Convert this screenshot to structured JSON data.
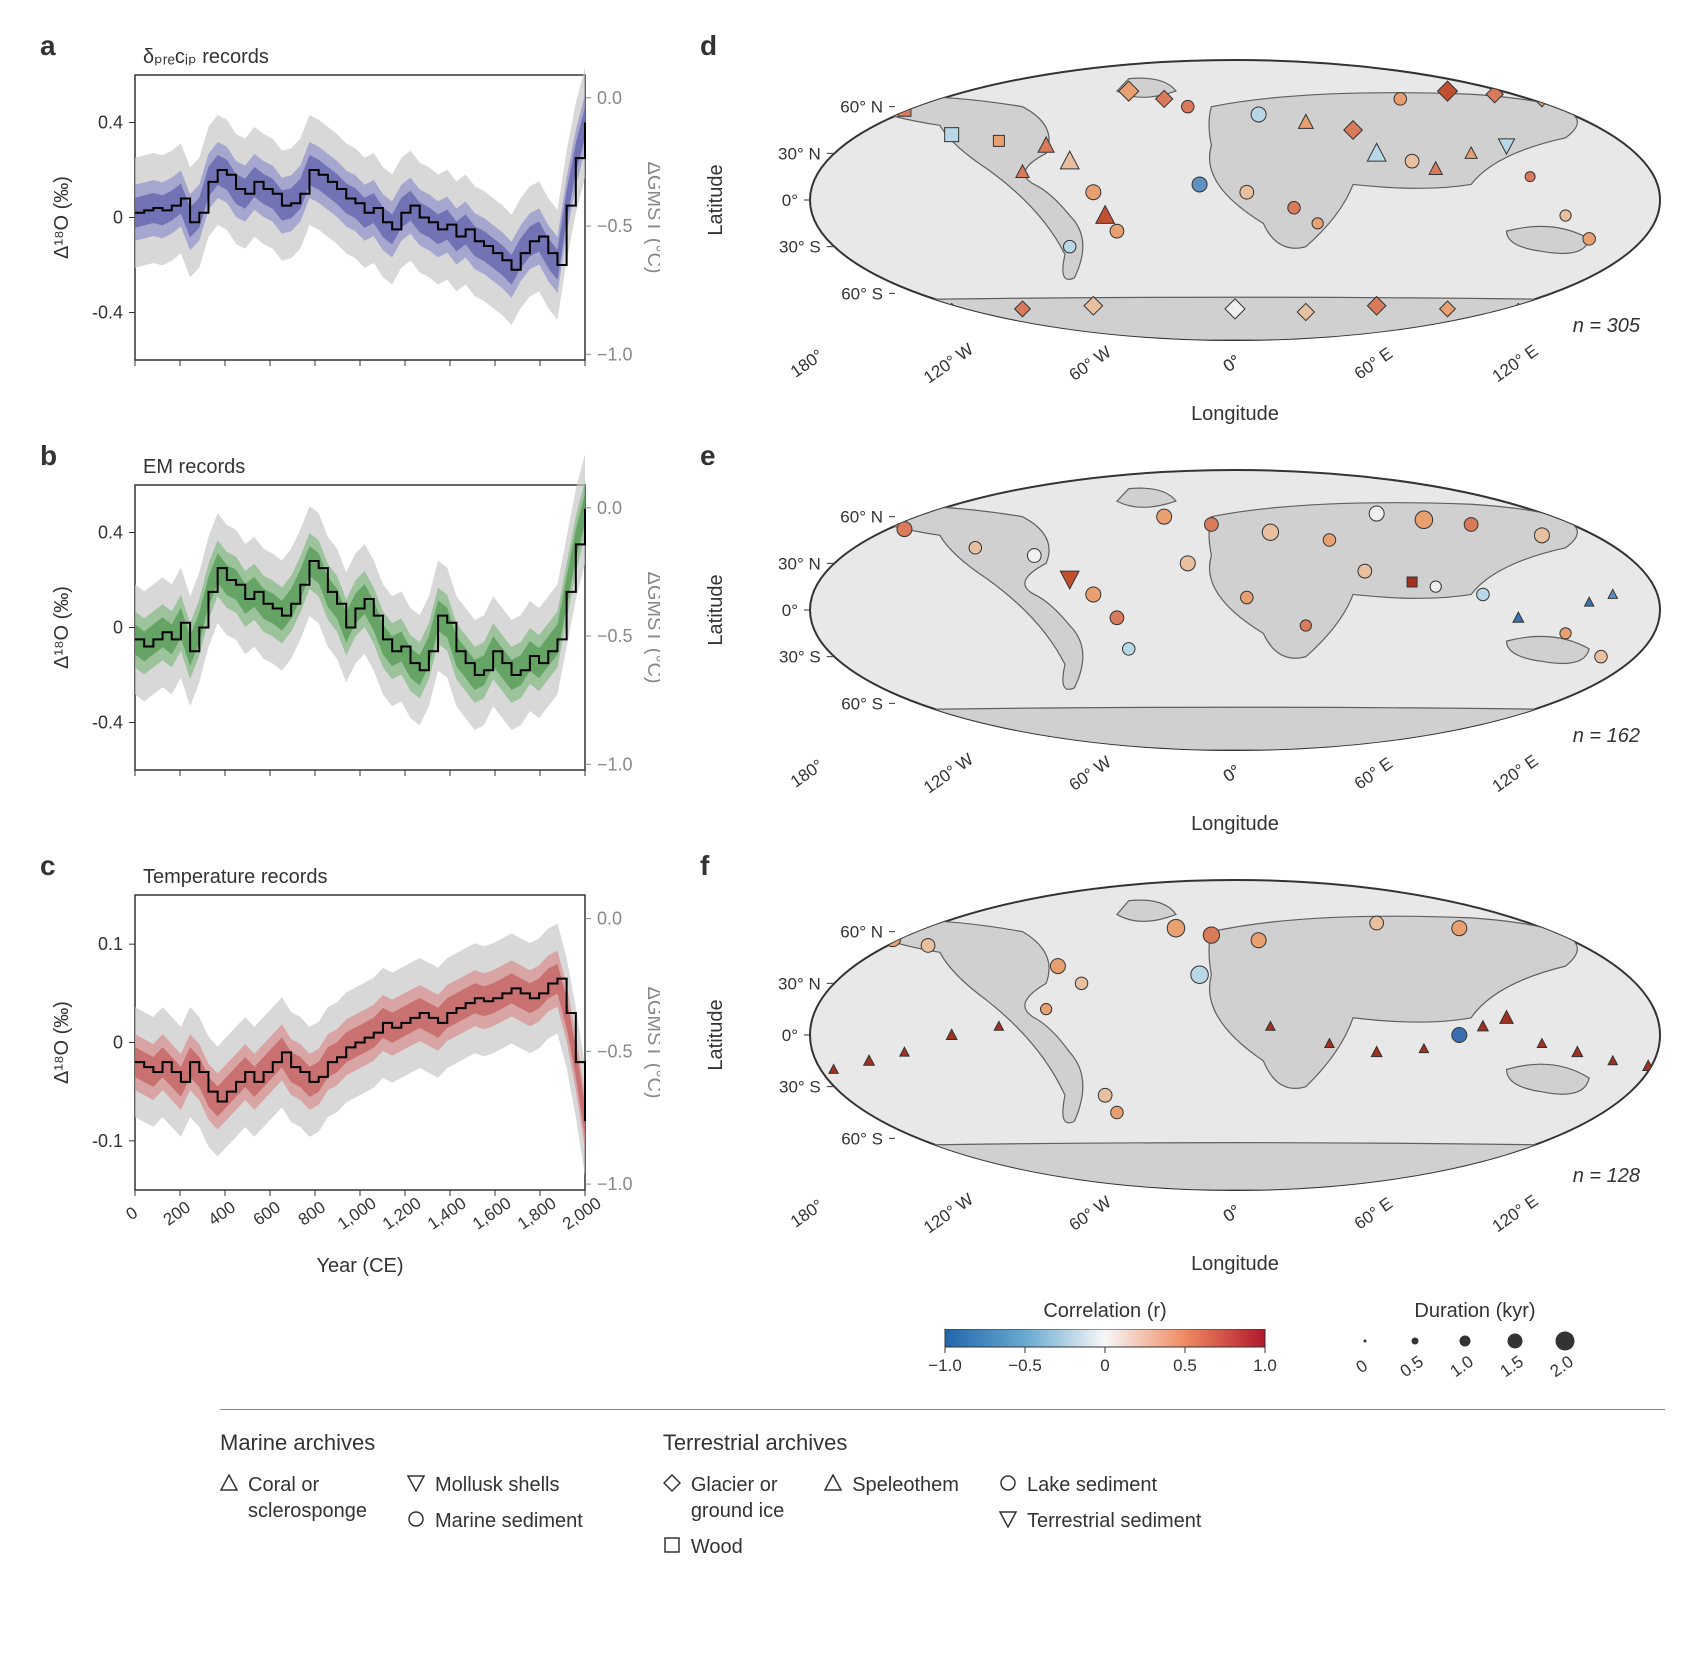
{
  "panels": {
    "a": {
      "letter": "a",
      "title": "δ_precip records",
      "ylabel": "Δ¹⁸O (‰)",
      "y2label": "ΔGMST (°C)",
      "ylim": [
        -0.6,
        0.6
      ],
      "yticks": [
        -0.4,
        0,
        0.4
      ],
      "y2ticks": [
        0,
        -0.5,
        -1.0
      ],
      "xlim": [
        0,
        2000
      ],
      "xticks": [
        0,
        200,
        400,
        600,
        800,
        1000,
        1200,
        1400,
        1600,
        1800,
        2000
      ],
      "band_color": "#7b7fc7",
      "band_color_dark": "#5558a8",
      "grey": "#c8c8c8",
      "line_color": "#000000",
      "line": [
        0.02,
        0.03,
        0.04,
        0.03,
        0.05,
        0.08,
        -0.02,
        0.02,
        0.15,
        0.2,
        0.18,
        0.12,
        0.1,
        0.15,
        0.12,
        0.1,
        0.05,
        0.06,
        0.1,
        0.2,
        0.18,
        0.15,
        0.12,
        0.08,
        0.06,
        0.02,
        0.04,
        -0.02,
        -0.05,
        0.02,
        0.05,
        0.0,
        -0.02,
        -0.05,
        -0.03,
        -0.08,
        -0.05,
        -0.1,
        -0.12,
        -0.15,
        -0.18,
        -0.22,
        -0.15,
        -0.1,
        -0.08,
        -0.15,
        -0.2,
        0.05,
        0.25,
        0.4
      ]
    },
    "b": {
      "letter": "b",
      "title": "EM records",
      "ylabel": "Δ¹⁸O (‰)",
      "y2label": "ΔGMST (°C)",
      "ylim": [
        -0.6,
        0.6
      ],
      "yticks": [
        -0.4,
        0,
        0.4
      ],
      "y2ticks": [
        0,
        -0.5,
        -1.0
      ],
      "xlim": [
        0,
        2000
      ],
      "xticks": [
        0,
        200,
        400,
        600,
        800,
        1000,
        1200,
        1400,
        1600,
        1800,
        2000
      ],
      "band_color": "#6bb36b",
      "band_color_dark": "#4a944a",
      "grey": "#c8c8c8",
      "line_color": "#000000",
      "line": [
        -0.05,
        -0.08,
        -0.05,
        -0.02,
        -0.05,
        0.02,
        -0.1,
        0.0,
        0.15,
        0.25,
        0.2,
        0.18,
        0.12,
        0.15,
        0.1,
        0.08,
        0.05,
        0.1,
        0.18,
        0.28,
        0.25,
        0.15,
        0.1,
        0.0,
        0.08,
        0.12,
        0.05,
        -0.05,
        -0.1,
        -0.08,
        -0.15,
        -0.18,
        -0.1,
        0.05,
        0.02,
        -0.1,
        -0.15,
        -0.2,
        -0.18,
        -0.1,
        -0.15,
        -0.2,
        -0.18,
        -0.12,
        -0.15,
        -0.1,
        -0.05,
        0.15,
        0.35,
        0.5
      ]
    },
    "c": {
      "letter": "c",
      "title": "Temperature records",
      "ylabel": "Δ¹⁸O (‰)",
      "y2label": "ΔGMST (°C)",
      "ylim": [
        0.15,
        -0.15
      ],
      "yticks": [
        -0.1,
        0,
        0.1
      ],
      "y2ticks": [
        0,
        -0.5,
        -1.0
      ],
      "xlim": [
        0,
        2000
      ],
      "xticks": [
        0,
        200,
        400,
        600,
        800,
        1000,
        1200,
        1400,
        1600,
        1800,
        2000
      ],
      "xlabel": "Year (CE)",
      "band_color": "#d87a7a",
      "band_color_dark": "#c15555",
      "grey": "#c8c8c8",
      "line_color": "#000000",
      "line": [
        -0.02,
        -0.025,
        -0.03,
        -0.02,
        -0.03,
        -0.04,
        -0.02,
        -0.03,
        -0.05,
        -0.06,
        -0.05,
        -0.04,
        -0.03,
        -0.04,
        -0.03,
        -0.02,
        -0.01,
        -0.025,
        -0.03,
        -0.04,
        -0.035,
        -0.02,
        -0.015,
        -0.005,
        0.0,
        0.005,
        0.01,
        0.02,
        0.015,
        0.02,
        0.025,
        0.03,
        0.025,
        0.02,
        0.03,
        0.035,
        0.04,
        0.045,
        0.042,
        0.045,
        0.05,
        0.055,
        0.05,
        0.045,
        0.05,
        0.06,
        0.065,
        0.03,
        -0.02,
        -0.08
      ]
    },
    "d": {
      "letter": "d",
      "n": "n = 305",
      "ylabel": "Latitude",
      "xlabel": "Longitude",
      "lat_ticks": [
        "60° N",
        "30° N",
        "0°",
        "30° S",
        "60° S"
      ],
      "lon_ticks": [
        "0°",
        "60° E",
        "120° E",
        "180°",
        "120° W",
        "60° W",
        "0°"
      ],
      "points": [
        {
          "x": -30,
          "y": 65,
          "c": "#d97a5a",
          "s": 12,
          "m": "diamond"
        },
        {
          "x": -45,
          "y": 70,
          "c": "#e8a070",
          "s": 14,
          "m": "diamond"
        },
        {
          "x": -20,
          "y": 60,
          "c": "#d97a5a",
          "s": 10,
          "m": "circle"
        },
        {
          "x": 10,
          "y": 55,
          "c": "#b8d8e8",
          "s": 12,
          "m": "circle"
        },
        {
          "x": 30,
          "y": 50,
          "c": "#e8a070",
          "s": 11,
          "m": "triangle"
        },
        {
          "x": 50,
          "y": 45,
          "c": "#d97a5a",
          "s": 13,
          "m": "diamond"
        },
        {
          "x": 70,
          "y": 65,
          "c": "#e8a070",
          "s": 10,
          "m": "circle"
        },
        {
          "x": 90,
          "y": 70,
          "c": "#c15030",
          "s": 14,
          "m": "diamond"
        },
        {
          "x": 110,
          "y": 68,
          "c": "#d97a5a",
          "s": 12,
          "m": "diamond"
        },
        {
          "x": 130,
          "y": 65,
          "c": "#e8a070",
          "s": 11,
          "m": "diamond"
        },
        {
          "x": 150,
          "y": 62,
          "c": "#3a70b0",
          "s": 14,
          "m": "circle"
        },
        {
          "x": -160,
          "y": 65,
          "c": "#e8a070",
          "s": 12,
          "m": "diamond"
        },
        {
          "x": -140,
          "y": 58,
          "c": "#d97a5a",
          "s": 13,
          "m": "square"
        },
        {
          "x": -120,
          "y": 42,
          "c": "#b8d8e8",
          "s": 14,
          "m": "square"
        },
        {
          "x": -100,
          "y": 38,
          "c": "#e8a070",
          "s": 11,
          "m": "square"
        },
        {
          "x": -80,
          "y": 35,
          "c": "#d97a5a",
          "s": 12,
          "m": "triangle"
        },
        {
          "x": -70,
          "y": 25,
          "c": "#e8c0a0",
          "s": 14,
          "m": "triangle"
        },
        {
          "x": -90,
          "y": 18,
          "c": "#d97a5a",
          "s": 10,
          "m": "triangle"
        },
        {
          "x": -60,
          "y": 5,
          "c": "#e8a070",
          "s": 12,
          "m": "circle"
        },
        {
          "x": -55,
          "y": -10,
          "c": "#c15030",
          "s": 14,
          "m": "triangle"
        },
        {
          "x": -50,
          "y": -20,
          "c": "#e8a070",
          "s": 11,
          "m": "circle"
        },
        {
          "x": -70,
          "y": -30,
          "c": "#b8d8e8",
          "s": 10,
          "m": "circle"
        },
        {
          "x": -15,
          "y": 10,
          "c": "#6090c0",
          "s": 12,
          "m": "circle"
        },
        {
          "x": 5,
          "y": 5,
          "c": "#e8c0a0",
          "s": 11,
          "m": "circle"
        },
        {
          "x": 25,
          "y": -5,
          "c": "#d97a5a",
          "s": 10,
          "m": "circle"
        },
        {
          "x": 35,
          "y": -15,
          "c": "#e8a070",
          "s": 9,
          "m": "circle"
        },
        {
          "x": 60,
          "y": 30,
          "c": "#b8d8e8",
          "s": 14,
          "m": "triangle"
        },
        {
          "x": 75,
          "y": 25,
          "c": "#e8c0a0",
          "s": 11,
          "m": "circle"
        },
        {
          "x": 85,
          "y": 20,
          "c": "#d97a5a",
          "s": 10,
          "m": "triangle"
        },
        {
          "x": 100,
          "y": 30,
          "c": "#e8a070",
          "s": 9,
          "m": "triangle"
        },
        {
          "x": 115,
          "y": 35,
          "c": "#b8d8e8",
          "s": 12,
          "m": "invtriangle"
        },
        {
          "x": 125,
          "y": 15,
          "c": "#d97a5a",
          "s": 8,
          "m": "circle"
        },
        {
          "x": 140,
          "y": -10,
          "c": "#e8c0a0",
          "s": 9,
          "m": "circle"
        },
        {
          "x": 150,
          "y": -25,
          "c": "#e8a070",
          "s": 10,
          "m": "circle"
        },
        {
          "x": 170,
          "y": -40,
          "c": "#d97a5a",
          "s": 11,
          "m": "circle"
        },
        {
          "x": 0,
          "y": -70,
          "c": "#f0f0f0",
          "s": 14,
          "m": "diamond"
        },
        {
          "x": 30,
          "y": -72,
          "c": "#e8c0a0",
          "s": 12,
          "m": "diamond"
        },
        {
          "x": 60,
          "y": -68,
          "c": "#d97a5a",
          "s": 13,
          "m": "diamond"
        },
        {
          "x": 90,
          "y": -70,
          "c": "#e8a070",
          "s": 11,
          "m": "diamond"
        },
        {
          "x": 120,
          "y": -72,
          "c": "#b8d8e8",
          "s": 12,
          "m": "diamond"
        },
        {
          "x": -60,
          "y": -68,
          "c": "#e8c0a0",
          "s": 13,
          "m": "diamond"
        },
        {
          "x": -90,
          "y": -70,
          "c": "#d97a5a",
          "s": 11,
          "m": "diamond"
        },
        {
          "x": -120,
          "y": -72,
          "c": "#e8a070",
          "s": 12,
          "m": "diamond"
        },
        {
          "x": -150,
          "y": -70,
          "c": "#f0f0f0",
          "s": 14,
          "m": "diamond"
        }
      ]
    },
    "e": {
      "letter": "e",
      "n": "n = 162",
      "ylabel": "Latitude",
      "xlabel": "Longitude",
      "lat_ticks": [
        "60° N",
        "30° N",
        "0°",
        "30° S",
        "60° S"
      ],
      "lon_ticks": [
        "0°",
        "60° E",
        "120° E",
        "180°",
        "120° W",
        "60° W",
        "0°"
      ],
      "points": [
        {
          "x": -30,
          "y": 60,
          "c": "#e8a070",
          "s": 12,
          "m": "circle"
        },
        {
          "x": -10,
          "y": 55,
          "c": "#d97a5a",
          "s": 11,
          "m": "circle"
        },
        {
          "x": 15,
          "y": 50,
          "c": "#e8c0a0",
          "s": 13,
          "m": "circle"
        },
        {
          "x": 40,
          "y": 45,
          "c": "#e8a070",
          "s": 10,
          "m": "circle"
        },
        {
          "x": 60,
          "y": 62,
          "c": "#f0f0f0",
          "s": 12,
          "m": "circle"
        },
        {
          "x": 80,
          "y": 58,
          "c": "#e8a070",
          "s": 14,
          "m": "circle"
        },
        {
          "x": 100,
          "y": 55,
          "c": "#d97a5a",
          "s": 11,
          "m": "circle"
        },
        {
          "x": 130,
          "y": 48,
          "c": "#e8c0a0",
          "s": 12,
          "m": "circle"
        },
        {
          "x": 145,
          "y": 62,
          "c": "#3a70b0",
          "s": 13,
          "m": "circle"
        },
        {
          "x": -160,
          "y": 58,
          "c": "#e8a070",
          "s": 11,
          "m": "circle"
        },
        {
          "x": -140,
          "y": 52,
          "c": "#d97a5a",
          "s": 12,
          "m": "circle"
        },
        {
          "x": -110,
          "y": 40,
          "c": "#e8c0a0",
          "s": 10,
          "m": "circle"
        },
        {
          "x": -85,
          "y": 35,
          "c": "#f0f0f0",
          "s": 11,
          "m": "circle"
        },
        {
          "x": -70,
          "y": 20,
          "c": "#c15030",
          "s": 14,
          "m": "invtriangle"
        },
        {
          "x": -60,
          "y": 10,
          "c": "#e8a070",
          "s": 12,
          "m": "circle"
        },
        {
          "x": -50,
          "y": -5,
          "c": "#d97a5a",
          "s": 11,
          "m": "circle"
        },
        {
          "x": -45,
          "y": -25,
          "c": "#b8d8e8",
          "s": 10,
          "m": "circle"
        },
        {
          "x": -20,
          "y": 30,
          "c": "#e8c0a0",
          "s": 12,
          "m": "circle"
        },
        {
          "x": 5,
          "y": 8,
          "c": "#e8a070",
          "s": 10,
          "m": "circle"
        },
        {
          "x": 30,
          "y": -10,
          "c": "#d97a5a",
          "s": 9,
          "m": "circle"
        },
        {
          "x": 55,
          "y": 25,
          "c": "#e8c0a0",
          "s": 11,
          "m": "circle"
        },
        {
          "x": 75,
          "y": 18,
          "c": "#a03020",
          "s": 10,
          "m": "square"
        },
        {
          "x": 85,
          "y": 15,
          "c": "#f0f0f0",
          "s": 9,
          "m": "circle"
        },
        {
          "x": 105,
          "y": 10,
          "c": "#b8d8e8",
          "s": 10,
          "m": "circle"
        },
        {
          "x": 120,
          "y": -5,
          "c": "#3a70b0",
          "s": 8,
          "m": "triangle"
        },
        {
          "x": 140,
          "y": -15,
          "c": "#e8a070",
          "s": 9,
          "m": "circle"
        },
        {
          "x": 155,
          "y": -30,
          "c": "#e8c0a0",
          "s": 10,
          "m": "circle"
        },
        {
          "x": 175,
          "y": -40,
          "c": "#e8a070",
          "s": 12,
          "m": "circle"
        },
        {
          "x": -165,
          "y": -55,
          "c": "#e8a070",
          "s": 11,
          "m": "circle"
        },
        {
          "x": 150,
          "y": 5,
          "c": "#3a70b0",
          "s": 7,
          "m": "triangle"
        },
        {
          "x": 160,
          "y": 10,
          "c": "#6090c0",
          "s": 7,
          "m": "triangle"
        }
      ]
    },
    "f": {
      "letter": "f",
      "n": "n = 128",
      "ylabel": "Latitude",
      "xlabel": "Longitude",
      "lat_ticks": [
        "60° N",
        "30° N",
        "0°",
        "30° S",
        "60° S"
      ],
      "lon_ticks": [
        "0°",
        "60° E",
        "120° E",
        "180°",
        "120° W",
        "60° W",
        "0°"
      ],
      "points": [
        {
          "x": -25,
          "y": 62,
          "c": "#e8a070",
          "s": 14,
          "m": "circle"
        },
        {
          "x": -10,
          "y": 58,
          "c": "#d97a5a",
          "s": 13,
          "m": "circle"
        },
        {
          "x": 10,
          "y": 55,
          "c": "#e8a070",
          "s": 12,
          "m": "circle"
        },
        {
          "x": 60,
          "y": 65,
          "c": "#e8c0a0",
          "s": 11,
          "m": "circle"
        },
        {
          "x": 95,
          "y": 62,
          "c": "#e8a070",
          "s": 12,
          "m": "circle"
        },
        {
          "x": -160,
          "y": 60,
          "c": "#d97a5a",
          "s": 14,
          "m": "circle"
        },
        {
          "x": -145,
          "y": 56,
          "c": "#e8a070",
          "s": 13,
          "m": "circle"
        },
        {
          "x": -130,
          "y": 52,
          "c": "#e8c0a0",
          "s": 11,
          "m": "circle"
        },
        {
          "x": -75,
          "y": 40,
          "c": "#e8a070",
          "s": 12,
          "m": "circle"
        },
        {
          "x": -65,
          "y": 30,
          "c": "#e8c0a0",
          "s": 10,
          "m": "circle"
        },
        {
          "x": -80,
          "y": 15,
          "c": "#e8a070",
          "s": 9,
          "m": "circle"
        },
        {
          "x": -55,
          "y": -35,
          "c": "#e8c0a0",
          "s": 11,
          "m": "circle"
        },
        {
          "x": -50,
          "y": -45,
          "c": "#e8a070",
          "s": 10,
          "m": "circle"
        },
        {
          "x": -15,
          "y": 35,
          "c": "#b8d8e8",
          "s": 14,
          "m": "circle"
        },
        {
          "x": 15,
          "y": 5,
          "c": "#a03020",
          "s": 7,
          "m": "triangle"
        },
        {
          "x": 40,
          "y": -5,
          "c": "#a03020",
          "s": 7,
          "m": "triangle"
        },
        {
          "x": 60,
          "y": -10,
          "c": "#a03020",
          "s": 8,
          "m": "triangle"
        },
        {
          "x": 80,
          "y": -8,
          "c": "#a03020",
          "s": 7,
          "m": "triangle"
        },
        {
          "x": 95,
          "y": 0,
          "c": "#3a70b0",
          "s": 12,
          "m": "circle"
        },
        {
          "x": 105,
          "y": 5,
          "c": "#a03020",
          "s": 8,
          "m": "triangle"
        },
        {
          "x": 115,
          "y": 10,
          "c": "#a03020",
          "s": 10,
          "m": "triangle"
        },
        {
          "x": 130,
          "y": -5,
          "c": "#a03020",
          "s": 7,
          "m": "triangle"
        },
        {
          "x": 145,
          "y": -10,
          "c": "#a03020",
          "s": 8,
          "m": "triangle"
        },
        {
          "x": 160,
          "y": -15,
          "c": "#a03020",
          "s": 7,
          "m": "triangle"
        },
        {
          "x": 175,
          "y": -18,
          "c": "#a03020",
          "s": 8,
          "m": "triangle"
        },
        {
          "x": -170,
          "y": -20,
          "c": "#a03020",
          "s": 7,
          "m": "triangle"
        },
        {
          "x": -155,
          "y": -15,
          "c": "#a03020",
          "s": 8,
          "m": "triangle"
        },
        {
          "x": -140,
          "y": -10,
          "c": "#a03020",
          "s": 7,
          "m": "triangle"
        },
        {
          "x": -120,
          "y": 0,
          "c": "#a03020",
          "s": 8,
          "m": "triangle"
        },
        {
          "x": -100,
          "y": 5,
          "c": "#a03020",
          "s": 7,
          "m": "triangle"
        }
      ]
    }
  },
  "colorbar": {
    "title": "Correlation (r)",
    "ticks": [
      "−1.0",
      "−0.5",
      "0",
      "0.5",
      "1.0"
    ],
    "colors": [
      "#2166ac",
      "#67a9cf",
      "#f7f7f7",
      "#ef8a62",
      "#b2182b"
    ]
  },
  "duration": {
    "title": "Duration (kyr)",
    "ticks": [
      "0",
      "0.5",
      "1.0",
      "1.5",
      "2.0"
    ],
    "sizes": [
      3,
      7,
      11,
      15,
      19
    ]
  },
  "legend": {
    "marine_title": "Marine archives",
    "terrestrial_title": "Terrestrial archives",
    "items": {
      "coral": "Coral or\nsclerosponge",
      "mollusk": "Mollusk shells",
      "marine_sed": "Marine sediment",
      "glacier": "Glacier or\nground ice",
      "wood": "Wood",
      "speleothem": "Speleothem",
      "lake": "Lake sediment",
      "terr_sed": "Terrestrial sediment"
    }
  }
}
